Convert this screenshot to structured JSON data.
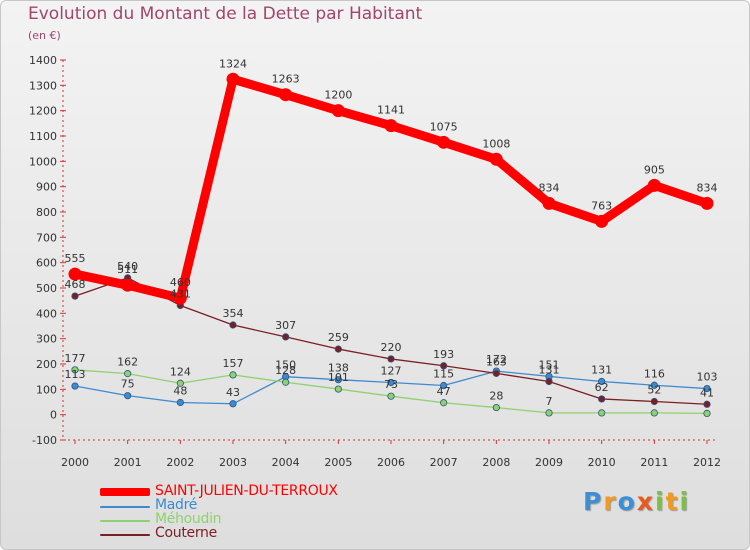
{
  "title": "Evolution du Montant de la Dette par Habitant",
  "subtitle": "(en €)",
  "logo": {
    "letters": [
      {
        "ch": "P",
        "color": "#3a8fd6"
      },
      {
        "ch": "r",
        "color": "#f29a1f"
      },
      {
        "ch": "o",
        "color": "#3a8fd6"
      },
      {
        "ch": "x",
        "color": "#e85a1e"
      },
      {
        "ch": "i",
        "color": "#7cc242"
      },
      {
        "ch": "t",
        "color": "#f29a1f"
      },
      {
        "ch": "i",
        "color": "#7cc242"
      }
    ]
  },
  "chart_data": {
    "type": "line",
    "x": [
      "2000",
      "2001",
      "2002",
      "2003",
      "2004",
      "2005",
      "2006",
      "2007",
      "2008",
      "2009",
      "2010",
      "2011",
      "2012"
    ],
    "ylim": [
      -100,
      1400
    ],
    "yticks": [
      -100,
      0,
      100,
      200,
      300,
      400,
      500,
      600,
      700,
      800,
      900,
      1000,
      1100,
      1200,
      1300,
      1400
    ],
    "grid": false,
    "series": [
      {
        "name": "SAINT-JULIEN-DU-TERROUX",
        "color": "#ff0000",
        "thick": true,
        "values": [
          555,
          511,
          460,
          1324,
          1263,
          1200,
          1141,
          1075,
          1008,
          834,
          763,
          905,
          834
        ],
        "labels": [
          "555",
          "511",
          "460",
          "1324",
          "1263",
          "1200",
          "1141",
          "1075",
          "1008",
          "834",
          "763",
          "905",
          "834"
        ]
      },
      {
        "name": "Madré",
        "color": "#3e8ad0",
        "thick": false,
        "values": [
          113,
          75,
          48,
          43,
          150,
          138,
          127,
          115,
          172,
          151,
          131,
          116,
          103
        ],
        "labels": [
          "113",
          "75",
          "48",
          "43",
          "150",
          "138",
          "127",
          "115",
          "172",
          "151",
          "131",
          "116",
          "103"
        ]
      },
      {
        "name": "Méhoudin",
        "color": "#8fd16e",
        "thick": false,
        "values": [
          177,
          162,
          124,
          157,
          128,
          101,
          73,
          47,
          28,
          7,
          7,
          7,
          5
        ],
        "labels": [
          "177",
          "162",
          "124",
          "157",
          "128",
          "101",
          "73",
          "47",
          "28",
          "7",
          "",
          "",
          ""
        ]
      },
      {
        "name": "Couterne",
        "color": "#7a1f23",
        "thick": false,
        "values": [
          468,
          540,
          431,
          354,
          307,
          259,
          220,
          193,
          163,
          131,
          62,
          52,
          41
        ],
        "labels": [
          "468",
          "540",
          "431",
          "354",
          "307",
          "259",
          "220",
          "193",
          "163",
          "131",
          "62",
          "52",
          "41"
        ]
      }
    ]
  }
}
